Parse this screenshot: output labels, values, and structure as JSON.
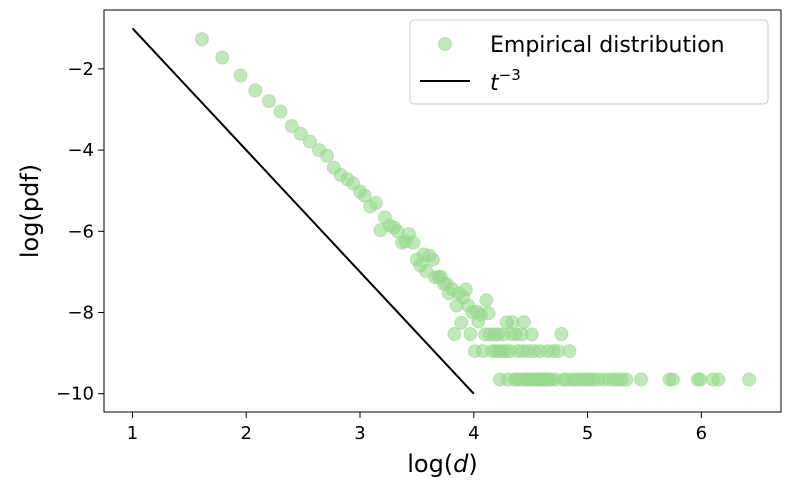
{
  "chart_data": {
    "type": "scatter",
    "xlabel_prefix": "log(",
    "xlabel_var": "d",
    "xlabel_suffix": ")",
    "ylabel": "log(pdf)",
    "xlim": [
      0.75,
      6.7
    ],
    "ylim": [
      -10.45,
      -0.55
    ],
    "xticks": [
      1,
      2,
      3,
      4,
      5,
      6
    ],
    "yticks": [
      -2,
      -4,
      -6,
      -8,
      -10
    ],
    "xtick_labels": [
      "1",
      "2",
      "3",
      "4",
      "5",
      "6"
    ],
    "ytick_labels": [
      "−2",
      "−4",
      "−6",
      "−8",
      "−10"
    ],
    "grid": false,
    "legend_position": "top-right",
    "series": [
      {
        "name": "Empirical distribution",
        "kind": "scatter",
        "color": "#98d98e",
        "points": [
          [
            1.61,
            -1.27
          ],
          [
            1.79,
            -1.72
          ],
          [
            1.95,
            -2.16
          ],
          [
            2.08,
            -2.53
          ],
          [
            2.2,
            -2.79
          ],
          [
            2.3,
            -3.05
          ],
          [
            2.4,
            -3.41
          ],
          [
            2.48,
            -3.6
          ],
          [
            2.56,
            -3.79
          ],
          [
            2.64,
            -4.0
          ],
          [
            2.71,
            -4.14
          ],
          [
            2.77,
            -4.43
          ],
          [
            2.83,
            -4.61
          ],
          [
            2.89,
            -4.72
          ],
          [
            2.94,
            -4.82
          ],
          [
            3.0,
            -5.02
          ],
          [
            3.04,
            -5.12
          ],
          [
            3.09,
            -5.39
          ],
          [
            3.14,
            -5.3
          ],
          [
            3.18,
            -5.97
          ],
          [
            3.22,
            -5.66
          ],
          [
            3.26,
            -5.86
          ],
          [
            3.3,
            -5.91
          ],
          [
            3.33,
            -6.0
          ],
          [
            3.37,
            -6.28
          ],
          [
            3.4,
            -6.25
          ],
          [
            3.43,
            -6.07
          ],
          [
            3.47,
            -6.28
          ],
          [
            3.5,
            -6.7
          ],
          [
            3.53,
            -6.84
          ],
          [
            3.56,
            -6.57
          ],
          [
            3.58,
            -6.98
          ],
          [
            3.61,
            -6.6
          ],
          [
            3.64,
            -6.7
          ],
          [
            3.66,
            -7.13
          ],
          [
            3.69,
            -7.13
          ],
          [
            3.71,
            -7.12
          ],
          [
            3.74,
            -7.3
          ],
          [
            3.76,
            -7.29
          ],
          [
            3.78,
            -7.53
          ],
          [
            3.81,
            -7.42
          ],
          [
            3.83,
            -8.53
          ],
          [
            3.85,
            -7.83
          ],
          [
            3.87,
            -7.53
          ],
          [
            3.89,
            -8.25
          ],
          [
            3.91,
            -7.63
          ],
          [
            3.93,
            -7.43
          ],
          [
            3.95,
            -7.83
          ],
          [
            3.97,
            -8.53
          ],
          [
            3.99,
            -8.0
          ],
          [
            4.01,
            -8.95
          ],
          [
            4.03,
            -7.98
          ],
          [
            4.04,
            -8.22
          ],
          [
            4.06,
            -8.05
          ],
          [
            4.08,
            -8.95
          ],
          [
            4.1,
            -8.54
          ],
          [
            4.11,
            -7.7
          ],
          [
            4.13,
            -8.02
          ],
          [
            4.14,
            -8.54
          ],
          [
            4.16,
            -8.95
          ],
          [
            4.18,
            -8.54
          ],
          [
            4.19,
            -8.95
          ],
          [
            4.21,
            -8.54
          ],
          [
            4.22,
            -8.95
          ],
          [
            4.23,
            -9.65
          ],
          [
            4.25,
            -8.95
          ],
          [
            4.26,
            -8.54
          ],
          [
            4.28,
            -8.95
          ],
          [
            4.29,
            -8.24
          ],
          [
            4.3,
            -9.65
          ],
          [
            4.32,
            -8.95
          ],
          [
            4.33,
            -8.53
          ],
          [
            4.34,
            -8.24
          ],
          [
            4.36,
            -9.65
          ],
          [
            4.37,
            -8.54
          ],
          [
            4.38,
            -9.65
          ],
          [
            4.39,
            -8.95
          ],
          [
            4.41,
            -9.65
          ],
          [
            4.42,
            -8.54
          ],
          [
            4.43,
            -8.95
          ],
          [
            4.44,
            -8.24
          ],
          [
            4.45,
            -9.65
          ],
          [
            4.47,
            -9.65
          ],
          [
            4.48,
            -8.95
          ],
          [
            4.49,
            -9.65
          ],
          [
            4.5,
            -9.65
          ],
          [
            4.51,
            -8.54
          ],
          [
            4.52,
            -9.65
          ],
          [
            4.53,
            -8.95
          ],
          [
            4.55,
            -9.65
          ],
          [
            4.56,
            -9.65
          ],
          [
            4.57,
            -9.65
          ],
          [
            4.58,
            -8.95
          ],
          [
            4.59,
            -9.65
          ],
          [
            4.6,
            -9.65
          ],
          [
            4.61,
            -9.65
          ],
          [
            4.62,
            -9.65
          ],
          [
            4.63,
            -9.65
          ],
          [
            4.64,
            -9.65
          ],
          [
            4.65,
            -8.95
          ],
          [
            4.66,
            -9.65
          ],
          [
            4.68,
            -9.65
          ],
          [
            4.7,
            -8.95
          ],
          [
            4.72,
            -9.65
          ],
          [
            4.74,
            -8.95
          ],
          [
            4.77,
            -8.53
          ],
          [
            4.79,
            -9.65
          ],
          [
            4.81,
            -9.65
          ],
          [
            4.84,
            -8.95
          ],
          [
            4.86,
            -9.65
          ],
          [
            4.89,
            -9.65
          ],
          [
            4.93,
            -9.65
          ],
          [
            4.96,
            -9.65
          ],
          [
            5.0,
            -9.65
          ],
          [
            5.02,
            -9.65
          ],
          [
            5.05,
            -9.65
          ],
          [
            5.09,
            -9.65
          ],
          [
            5.14,
            -9.65
          ],
          [
            5.19,
            -9.65
          ],
          [
            5.23,
            -9.65
          ],
          [
            5.26,
            -9.65
          ],
          [
            5.3,
            -9.65
          ],
          [
            5.34,
            -9.65
          ],
          [
            5.47,
            -9.65
          ],
          [
            5.72,
            -9.65
          ],
          [
            5.75,
            -9.65
          ],
          [
            5.97,
            -9.65
          ],
          [
            5.99,
            -9.65
          ],
          [
            6.1,
            -9.65
          ],
          [
            6.15,
            -9.65
          ],
          [
            6.42,
            -9.65
          ]
        ]
      },
      {
        "kind": "line",
        "label_base": "t",
        "label_exp": "−3",
        "color": "#000000",
        "points": [
          [
            1,
            -1
          ],
          [
            4,
            -10
          ]
        ]
      }
    ]
  }
}
